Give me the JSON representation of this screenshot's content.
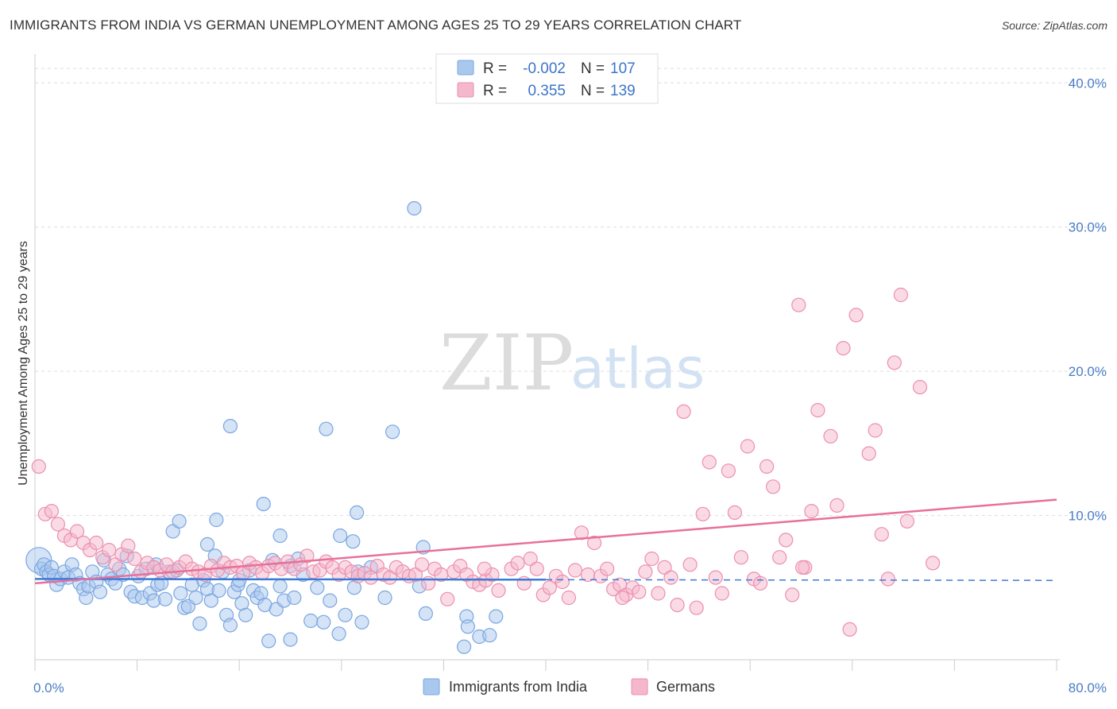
{
  "header": {
    "title": "IMMIGRANTS FROM INDIA VS GERMAN UNEMPLOYMENT AMONG AGES 25 TO 29 YEARS CORRELATION CHART",
    "source": "Source: ZipAtlas.com"
  },
  "watermark": {
    "zip": "ZIP",
    "atlas": "atlas"
  },
  "legend_top": {
    "rows": [
      {
        "r_label": "R =",
        "r_value": "-0.002",
        "n_label": "N =",
        "n_value": "107",
        "color": "#a9c8ee"
      },
      {
        "r_label": "R =",
        "r_value": "0.355",
        "n_label": "N =",
        "n_value": "139",
        "color": "#f5b7cb"
      }
    ]
  },
  "legend_bottom": {
    "items": [
      {
        "label": "Immigrants from India",
        "color": "#a9c8ee"
      },
      {
        "label": "Germans",
        "color": "#f5b7cb"
      }
    ]
  },
  "chart_data": {
    "type": "scatter",
    "title": "IMMIGRANTS FROM INDIA VS GERMAN UNEMPLOYMENT AMONG AGES 25 TO 29 YEARS CORRELATION CHART",
    "xlabel": "",
    "ylabel": "Unemployment Among Ages 25 to 29 years",
    "xlim": [
      0,
      80
    ],
    "ylim": [
      0,
      42
    ],
    "x_tick_labels": [
      "0.0%",
      "80.0%"
    ],
    "y_ticks": [
      10,
      20,
      30,
      40
    ],
    "y_tick_labels": [
      "10.0%",
      "20.0%",
      "30.0%",
      "40.0%"
    ],
    "grid": true,
    "legend_position": "top-center",
    "series": [
      {
        "name": "Immigrants from India",
        "color": "#a9c8ee",
        "stroke": "#7aa6e0",
        "trend": {
          "x": [
            0,
            40
          ],
          "y": [
            5.6,
            5.55
          ],
          "dashed_to": [
            80,
            5.5
          ],
          "color": "#3d7ad6"
        },
        "points": [
          [
            0.3,
            6.9
          ],
          [
            0.5,
            6.3
          ],
          [
            0.7,
            6.6
          ],
          [
            0.9,
            6.1
          ],
          [
            1.1,
            5.9
          ],
          [
            1.3,
            6.4
          ],
          [
            1.5,
            5.8
          ],
          [
            1.7,
            5.2
          ],
          [
            2.0,
            5.6
          ],
          [
            2.3,
            6.1
          ],
          [
            2.6,
            5.7
          ],
          [
            2.9,
            6.6
          ],
          [
            3.2,
            5.9
          ],
          [
            3.5,
            5.3
          ],
          [
            3.8,
            4.9
          ],
          [
            4.0,
            4.3
          ],
          [
            4.2,
            5.1
          ],
          [
            4.5,
            6.1
          ],
          [
            4.8,
            5.4
          ],
          [
            5.1,
            4.7
          ],
          [
            5.4,
            6.9
          ],
          [
            5.7,
            5.9
          ],
          [
            6.0,
            5.6
          ],
          [
            6.3,
            5.3
          ],
          [
            6.6,
            6.3
          ],
          [
            6.9,
            5.9
          ],
          [
            7.2,
            7.2
          ],
          [
            7.5,
            4.7
          ],
          [
            7.8,
            4.4
          ],
          [
            8.1,
            5.8
          ],
          [
            8.4,
            4.3
          ],
          [
            8.7,
            6.3
          ],
          [
            9.0,
            4.6
          ],
          [
            9.3,
            4.1
          ],
          [
            9.6,
            5.2
          ],
          [
            9.9,
            5.3
          ],
          [
            10.2,
            4.2
          ],
          [
            10.5,
            6.1
          ],
          [
            10.8,
            8.9
          ],
          [
            11.1,
            6.2
          ],
          [
            11.4,
            4.6
          ],
          [
            11.7,
            3.6
          ],
          [
            12.0,
            3.7
          ],
          [
            12.3,
            5.2
          ],
          [
            12.6,
            4.3
          ],
          [
            12.9,
            2.5
          ],
          [
            13.2,
            5.5
          ],
          [
            13.5,
            4.9
          ],
          [
            13.8,
            4.1
          ],
          [
            14.1,
            7.2
          ],
          [
            14.4,
            4.8
          ],
          [
            14.7,
            6.1
          ],
          [
            15.0,
            3.1
          ],
          [
            15.3,
            2.4
          ],
          [
            15.6,
            4.7
          ],
          [
            15.9,
            5.2
          ],
          [
            16.2,
            3.9
          ],
          [
            16.5,
            3.1
          ],
          [
            16.8,
            6.2
          ],
          [
            17.1,
            4.8
          ],
          [
            17.4,
            4.3
          ],
          [
            17.7,
            4.6
          ],
          [
            18.0,
            3.8
          ],
          [
            18.3,
            1.3
          ],
          [
            18.6,
            6.9
          ],
          [
            18.9,
            3.5
          ],
          [
            19.2,
            5.1
          ],
          [
            19.5,
            4.1
          ],
          [
            20.0,
            1.4
          ],
          [
            20.3,
            4.3
          ],
          [
            20.6,
            7.0
          ],
          [
            21.0,
            5.9
          ],
          [
            21.6,
            2.7
          ],
          [
            22.1,
            5.0
          ],
          [
            22.6,
            2.6
          ],
          [
            23.1,
            4.1
          ],
          [
            23.8,
            1.8
          ],
          [
            24.3,
            3.1
          ],
          [
            25.0,
            5.0
          ],
          [
            25.6,
            2.6
          ],
          [
            26.3,
            6.4
          ],
          [
            11.3,
            9.6
          ],
          [
            14.2,
            9.7
          ],
          [
            15.3,
            16.2
          ],
          [
            17.9,
            10.8
          ],
          [
            19.2,
            8.6
          ],
          [
            22.8,
            16.0
          ],
          [
            23.9,
            8.6
          ],
          [
            24.9,
            8.2
          ],
          [
            25.2,
            10.2
          ],
          [
            28.0,
            15.8
          ],
          [
            30.1,
            5.1
          ],
          [
            30.6,
            3.2
          ],
          [
            27.4,
            4.3
          ],
          [
            25.3,
            6.1
          ],
          [
            29.7,
            31.3
          ],
          [
            33.6,
            0.9
          ],
          [
            33.8,
            3.0
          ],
          [
            33.9,
            2.3
          ],
          [
            34.8,
            1.6
          ],
          [
            35.6,
            1.7
          ],
          [
            36.1,
            3.0
          ],
          [
            30.4,
            7.8
          ],
          [
            13.5,
            8.0
          ],
          [
            9.5,
            6.6
          ],
          [
            16.0,
            5.5
          ],
          [
            20.0,
            6.5
          ]
        ]
      },
      {
        "name": "Germans",
        "color": "#f5b7cb",
        "stroke": "#ec8fad",
        "trend": {
          "x": [
            0,
            80
          ],
          "y": [
            5.3,
            11.1
          ],
          "color": "#e8709a"
        },
        "points": [
          [
            0.3,
            13.4
          ],
          [
            0.8,
            10.1
          ],
          [
            1.3,
            10.3
          ],
          [
            1.8,
            9.4
          ],
          [
            2.3,
            8.6
          ],
          [
            2.8,
            8.3
          ],
          [
            3.3,
            8.9
          ],
          [
            3.8,
            8.1
          ],
          [
            4.3,
            7.6
          ],
          [
            4.8,
            8.1
          ],
          [
            5.3,
            7.1
          ],
          [
            5.8,
            7.6
          ],
          [
            6.3,
            6.6
          ],
          [
            6.8,
            7.3
          ],
          [
            7.3,
            7.9
          ],
          [
            7.8,
            7.0
          ],
          [
            8.3,
            6.1
          ],
          [
            8.8,
            6.7
          ],
          [
            9.3,
            6.4
          ],
          [
            9.8,
            6.2
          ],
          [
            10.3,
            6.6
          ],
          [
            10.8,
            6.1
          ],
          [
            11.3,
            6.4
          ],
          [
            11.8,
            6.8
          ],
          [
            12.3,
            6.3
          ],
          [
            12.8,
            6.1
          ],
          [
            13.3,
            5.9
          ],
          [
            13.8,
            6.5
          ],
          [
            14.3,
            6.2
          ],
          [
            14.8,
            6.7
          ],
          [
            15.3,
            6.4
          ],
          [
            15.8,
            6.5
          ],
          [
            16.3,
            6.0
          ],
          [
            16.8,
            6.7
          ],
          [
            17.3,
            6.4
          ],
          [
            17.8,
            6.0
          ],
          [
            18.3,
            6.5
          ],
          [
            18.8,
            6.7
          ],
          [
            19.3,
            6.3
          ],
          [
            19.8,
            6.8
          ],
          [
            20.3,
            6.3
          ],
          [
            20.8,
            6.6
          ],
          [
            21.3,
            7.2
          ],
          [
            21.8,
            6.1
          ],
          [
            22.3,
            6.2
          ],
          [
            22.8,
            6.8
          ],
          [
            23.3,
            6.4
          ],
          [
            23.8,
            5.9
          ],
          [
            24.3,
            6.4
          ],
          [
            24.8,
            6.1
          ],
          [
            25.3,
            5.8
          ],
          [
            25.8,
            6.0
          ],
          [
            26.3,
            5.7
          ],
          [
            26.8,
            6.5
          ],
          [
            27.3,
            5.9
          ],
          [
            27.8,
            5.7
          ],
          [
            28.3,
            6.4
          ],
          [
            28.8,
            6.1
          ],
          [
            29.3,
            5.8
          ],
          [
            29.8,
            5.9
          ],
          [
            30.3,
            6.6
          ],
          [
            30.8,
            5.3
          ],
          [
            31.3,
            6.3
          ],
          [
            31.8,
            5.9
          ],
          [
            32.3,
            4.2
          ],
          [
            32.8,
            6.1
          ],
          [
            33.3,
            6.5
          ],
          [
            33.8,
            5.9
          ],
          [
            34.3,
            5.4
          ],
          [
            34.8,
            5.2
          ],
          [
            35.3,
            5.5
          ],
          [
            35.8,
            5.9
          ],
          [
            36.3,
            4.8
          ],
          [
            37.3,
            6.3
          ],
          [
            37.8,
            6.7
          ],
          [
            38.3,
            5.3
          ],
          [
            38.8,
            7.0
          ],
          [
            39.3,
            6.3
          ],
          [
            39.8,
            4.5
          ],
          [
            40.3,
            5.0
          ],
          [
            40.8,
            5.8
          ],
          [
            41.3,
            5.4
          ],
          [
            41.8,
            4.3
          ],
          [
            42.3,
            6.2
          ],
          [
            42.8,
            8.8
          ],
          [
            43.3,
            5.9
          ],
          [
            43.8,
            8.1
          ],
          [
            44.3,
            5.8
          ],
          [
            44.8,
            6.3
          ],
          [
            45.3,
            4.9
          ],
          [
            45.8,
            5.2
          ],
          [
            46.3,
            4.5
          ],
          [
            46.8,
            5.0
          ],
          [
            47.3,
            4.7
          ],
          [
            47.8,
            6.1
          ],
          [
            48.3,
            7.0
          ],
          [
            48.8,
            4.6
          ],
          [
            49.3,
            6.4
          ],
          [
            49.8,
            5.7
          ],
          [
            50.3,
            3.8
          ],
          [
            50.8,
            17.2
          ],
          [
            51.3,
            6.6
          ],
          [
            51.8,
            3.6
          ],
          [
            52.3,
            10.1
          ],
          [
            52.8,
            13.7
          ],
          [
            53.3,
            5.7
          ],
          [
            53.8,
            4.6
          ],
          [
            54.3,
            13.1
          ],
          [
            54.8,
            10.2
          ],
          [
            55.3,
            7.1
          ],
          [
            55.8,
            14.8
          ],
          [
            56.3,
            5.6
          ],
          [
            56.8,
            5.3
          ],
          [
            57.3,
            13.4
          ],
          [
            57.8,
            12.0
          ],
          [
            58.3,
            7.1
          ],
          [
            58.8,
            8.3
          ],
          [
            59.3,
            4.5
          ],
          [
            59.8,
            24.6
          ],
          [
            60.3,
            6.4
          ],
          [
            60.8,
            10.3
          ],
          [
            61.3,
            17.3
          ],
          [
            62.3,
            15.5
          ],
          [
            62.8,
            10.7
          ],
          [
            63.3,
            21.6
          ],
          [
            63.8,
            2.1
          ],
          [
            64.3,
            23.9
          ],
          [
            65.3,
            14.3
          ],
          [
            65.8,
            15.9
          ],
          [
            66.3,
            8.7
          ],
          [
            66.8,
            5.6
          ],
          [
            67.3,
            20.6
          ],
          [
            67.8,
            25.3
          ],
          [
            68.3,
            9.6
          ],
          [
            69.3,
            18.9
          ],
          [
            70.3,
            6.7
          ],
          [
            60.1,
            6.4
          ],
          [
            35.2,
            6.3
          ],
          [
            46.0,
            4.3
          ]
        ]
      }
    ]
  }
}
